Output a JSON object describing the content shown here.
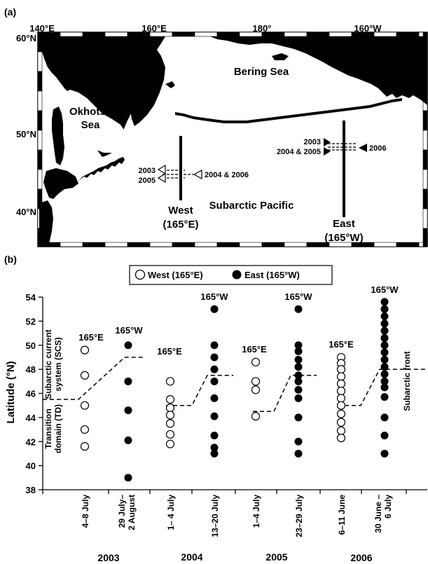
{
  "map": {
    "panel_label": "(a)",
    "lon_ticks": [
      "140°E",
      "160°E",
      "180°",
      "160°W"
    ],
    "lat_ticks": [
      "60°N",
      "50°N",
      "40°N"
    ],
    "regions": {
      "bering": "Bering Sea",
      "okhotsk_1": "Okhotsk",
      "okhotsk_2": "Sea",
      "subarctic": "Subarctic Pacific"
    },
    "transects": {
      "west_1": "West",
      "west_2": "(165°E)",
      "east_1": "East",
      "east_2": "(165°W)"
    },
    "years": {
      "w_2003": "2003",
      "w_2005": "2005",
      "w_2004_2006": "2004 & 2006",
      "e_2003": "2003",
      "e_2004_2005": "2004 & 2005",
      "e_2006": "2006"
    }
  },
  "chart": {
    "panel_label": "(b)",
    "legend": {
      "west": "West (165°E)",
      "east": "East (165°W)"
    },
    "ylabel": "Latitude (°N)",
    "side_labels": {
      "scs_1": "Subarctic current",
      "scs_2": "system (SCS)",
      "td_1": "Transition",
      "td_2": "domain (TD)",
      "front": "Subarctic front"
    },
    "group_labels": {
      "e2003": "165°E",
      "w2003": "165°W",
      "e2004": "165°E",
      "w2004": "165°W",
      "e2005": "165°E",
      "w2005": "165°W",
      "e2006": "165°E",
      "w2006": "165°W"
    },
    "year_labels": [
      "2003",
      "2004",
      "2005",
      "2006"
    ],
    "date_labels": {
      "c0": "4–8 July",
      "c1a": "29 July–",
      "c1b": "2 August",
      "c2": "1– 4 July",
      "c3": "13–20 July",
      "c4": "1–4 July",
      "c5": "23–29 July",
      "c6": "6–11 June",
      "c7a": "30 June –",
      "c7b": "6 July"
    }
  },
  "chart_data": {
    "type": "scatter",
    "ylabel": "Latitude (°N)",
    "ylim": [
      38,
      54
    ],
    "yticks": [
      38,
      40,
      42,
      44,
      46,
      48,
      50,
      52,
      54
    ],
    "categories": [
      "4–8 July",
      "29 July– 2 August",
      "1– 4 July",
      "13–20 July",
      "1–4 July",
      "23–29 July",
      "6–11 June",
      "30 June – 6 July"
    ],
    "years": [
      "2003",
      "2004",
      "2005",
      "2006"
    ],
    "series": [
      {
        "name": "West (165°E)",
        "marker": "open-circle",
        "points": [
          {
            "cat": 0,
            "lats": [
              49.6,
              47.5,
              45.0,
              43.0,
              41.6
            ]
          },
          {
            "cat": 2,
            "lats": [
              47.0,
              45.5,
              44.8,
              44.2,
              43.5,
              42.6,
              41.8
            ]
          },
          {
            "cat": 4,
            "lats": [
              48.6,
              47.0,
              46.3,
              44.1
            ]
          },
          {
            "cat": 6,
            "lats": [
              49.0,
              48.5,
              48.0,
              47.4,
              46.8,
              46.2,
              45.6,
              45.0,
              44.3,
              43.6,
              42.9,
              42.3
            ]
          }
        ]
      },
      {
        "name": "East (165°W)",
        "marker": "filled-circle",
        "points": [
          {
            "cat": 1,
            "lats": [
              50.0,
              47.0,
              44.6,
              42.1,
              39.0
            ]
          },
          {
            "cat": 3,
            "lats": [
              53.0,
              50.0,
              49.0,
              48.0,
              47.0,
              45.6,
              44.1,
              42.5,
              41.5,
              41.0
            ]
          },
          {
            "cat": 5,
            "lats": [
              53.0,
              50.0,
              49.5,
              48.8,
              48.2,
              47.5,
              47.0,
              46.3,
              45.6,
              44.0,
              42.0,
              41.0
            ]
          },
          {
            "cat": 7,
            "lats": [
              53.6,
              53.0,
              52.4,
              51.8,
              51.2,
              50.6,
              50.0,
              49.4,
              48.8,
              48.2,
              47.6,
              47.0,
              46.5,
              45.7,
              44.0,
              42.5,
              41.0
            ]
          }
        ]
      }
    ],
    "subarctic_front": [
      {
        "group": "2003",
        "west": 45.5,
        "east": 49.0
      },
      {
        "group": "2004",
        "west": 45.0,
        "east": 47.5
      },
      {
        "group": "2005",
        "west": 44.5,
        "east": 47.5
      },
      {
        "group": "2006",
        "west": 45.0,
        "east": 48.0
      }
    ]
  }
}
